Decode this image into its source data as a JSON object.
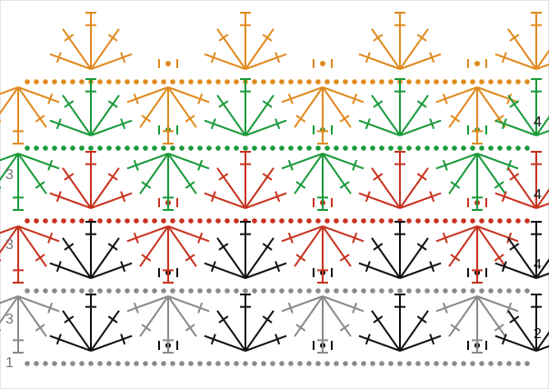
{
  "row_labels": {
    "left": [
      "3",
      "3",
      "3",
      "1"
    ],
    "right": [
      "4",
      "4",
      "4",
      "2"
    ]
  }
}
